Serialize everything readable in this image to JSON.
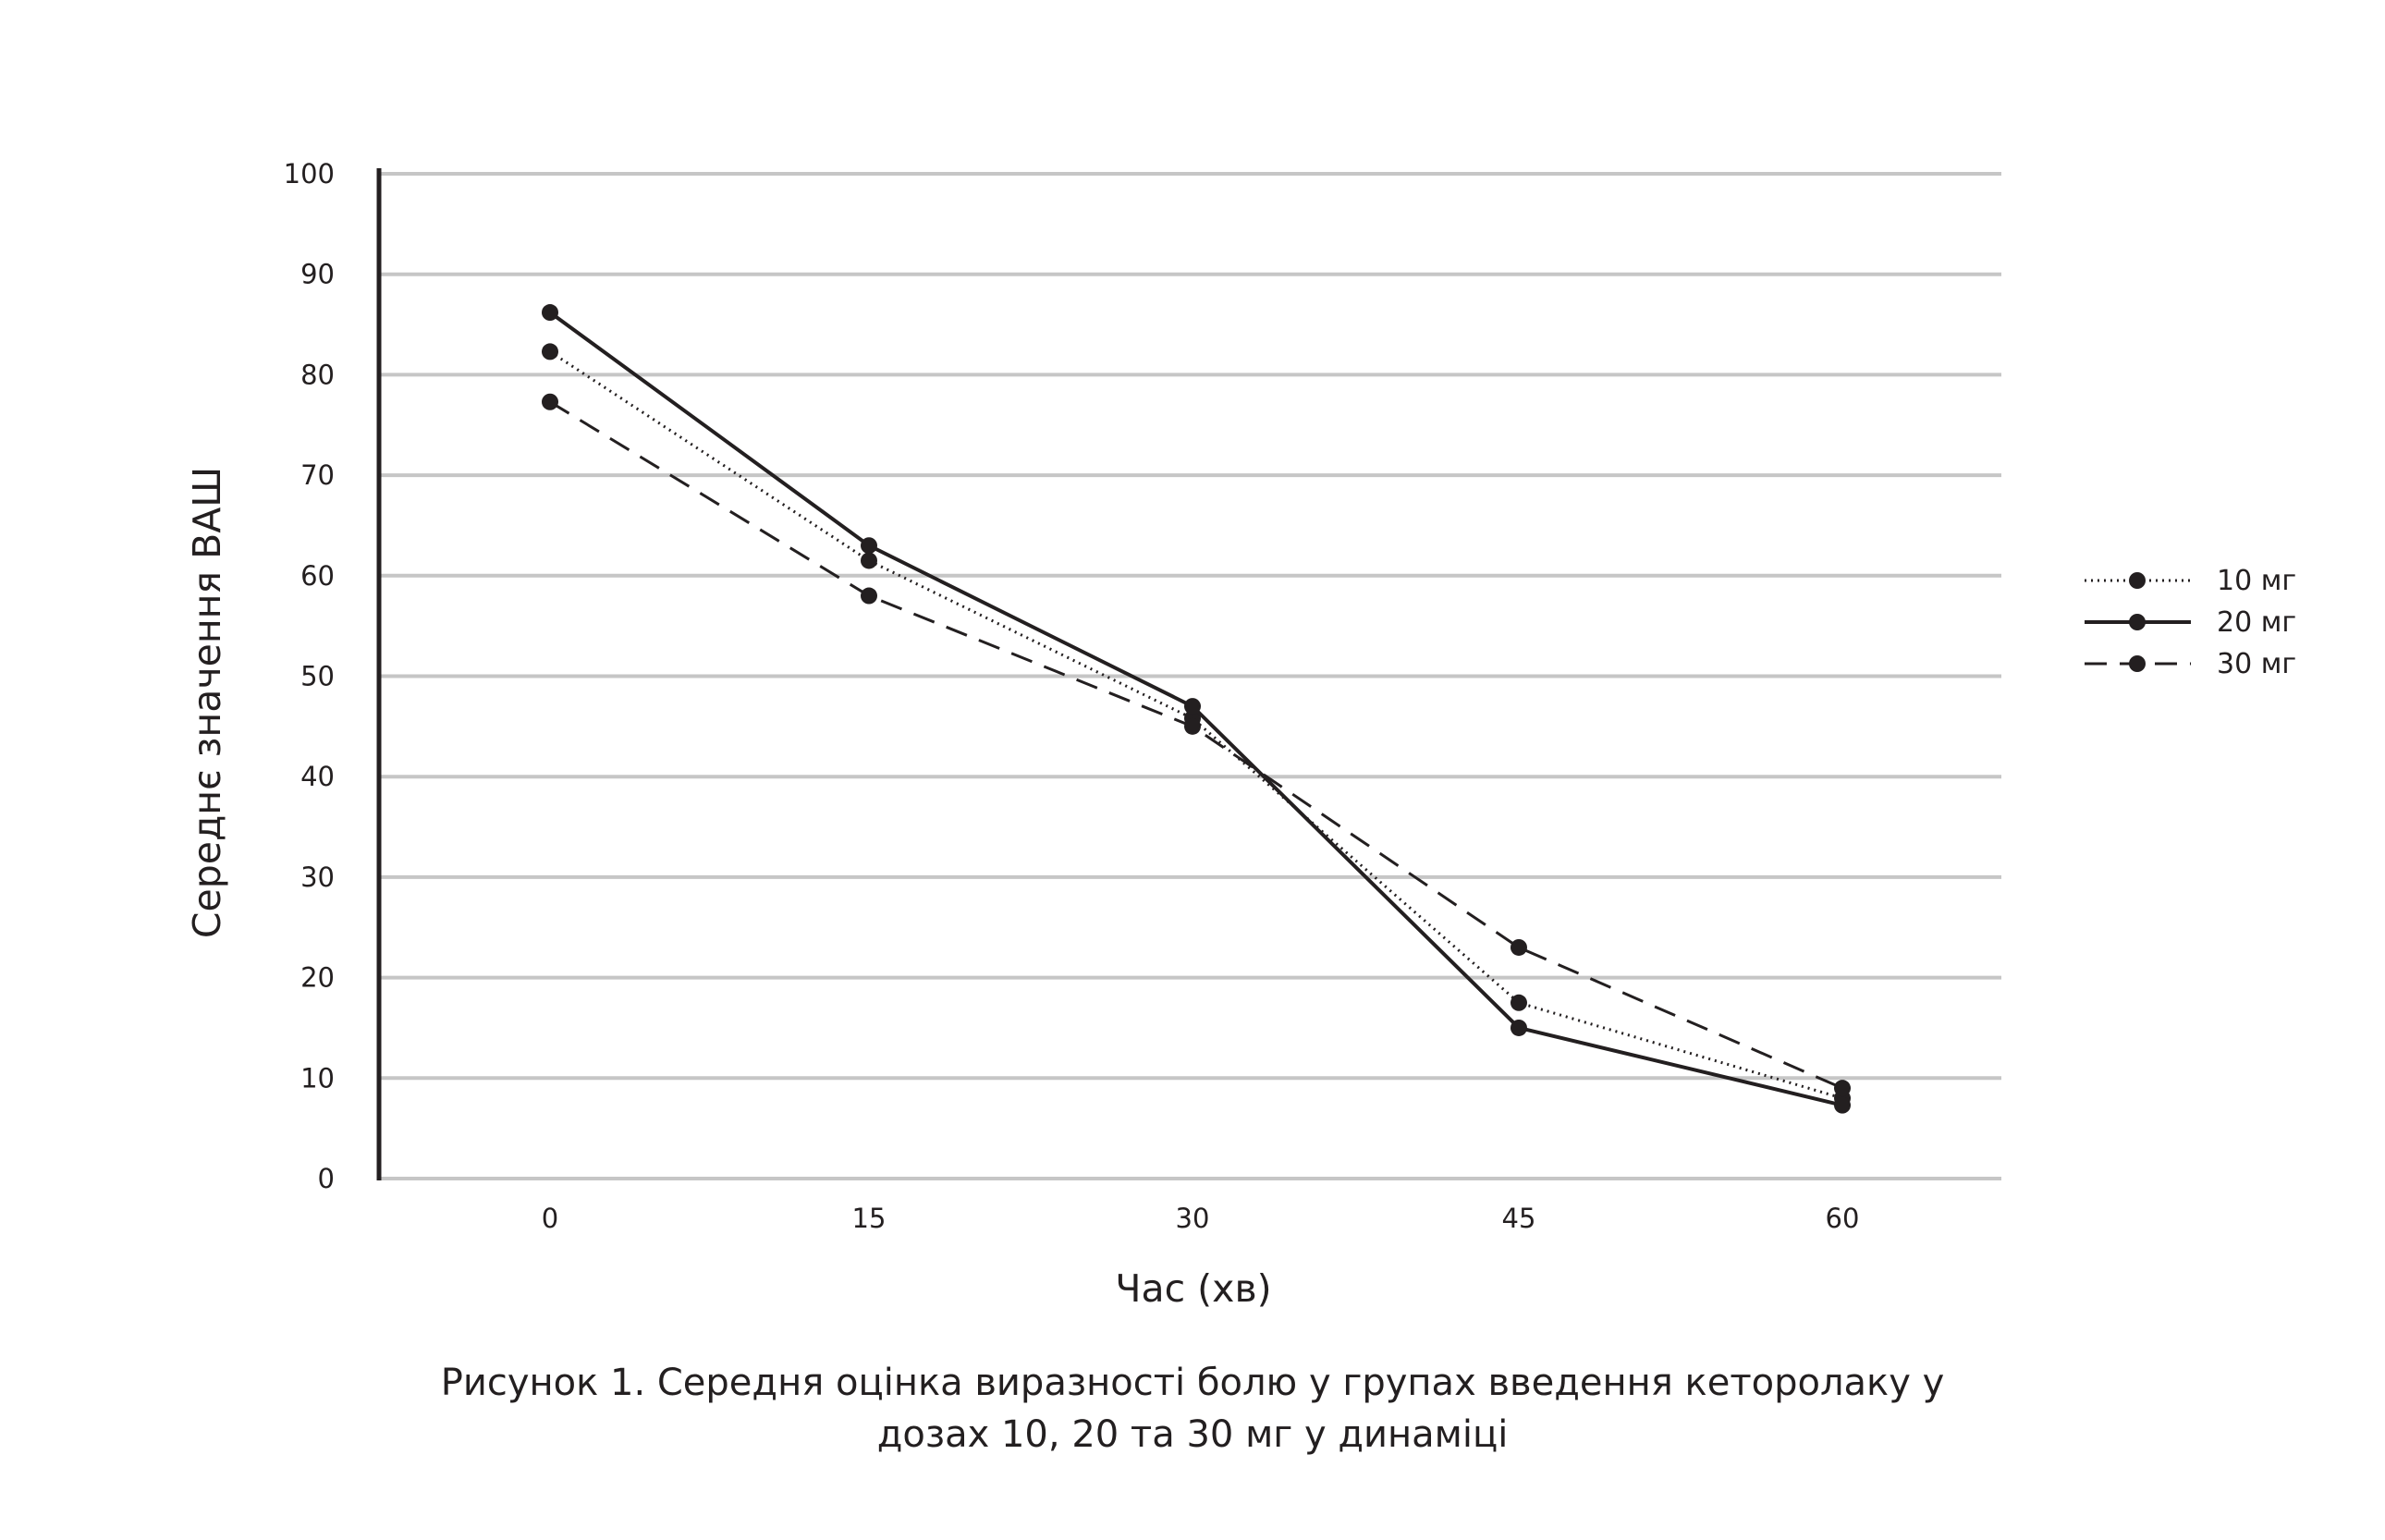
{
  "chart_data": {
    "type": "line",
    "x": [
      0,
      15,
      30,
      45,
      60
    ],
    "xlabel": "Час (хв)",
    "ylabel": "Середнє значення ВАШ",
    "ylim": [
      0,
      100
    ],
    "yticks": [
      0,
      10,
      20,
      30,
      40,
      50,
      60,
      70,
      80,
      90,
      100
    ],
    "grid": "horizontal",
    "legend_position": "right",
    "series": [
      {
        "name": "10 мг",
        "style": "dotted",
        "color": "#231f20",
        "values": [
          82.3,
          61.5,
          45.8,
          17.5,
          8.0
        ]
      },
      {
        "name": "20 мг",
        "style": "solid",
        "color": "#231f20",
        "values": [
          86.2,
          63.0,
          47.0,
          15.0,
          7.3
        ]
      },
      {
        "name": "30 мг",
        "style": "dashed",
        "color": "#231f20",
        "values": [
          77.3,
          58.0,
          45.0,
          23.0,
          9.0
        ]
      }
    ]
  },
  "caption": {
    "line1": "Рисунок 1. Середня оцінка виразності болю у групах введення кеторолаку у",
    "line2": "дозах 10, 20 та 30 мг у динаміці"
  },
  "colors": {
    "ink": "#231f20",
    "grid": "#c6c6c6"
  }
}
